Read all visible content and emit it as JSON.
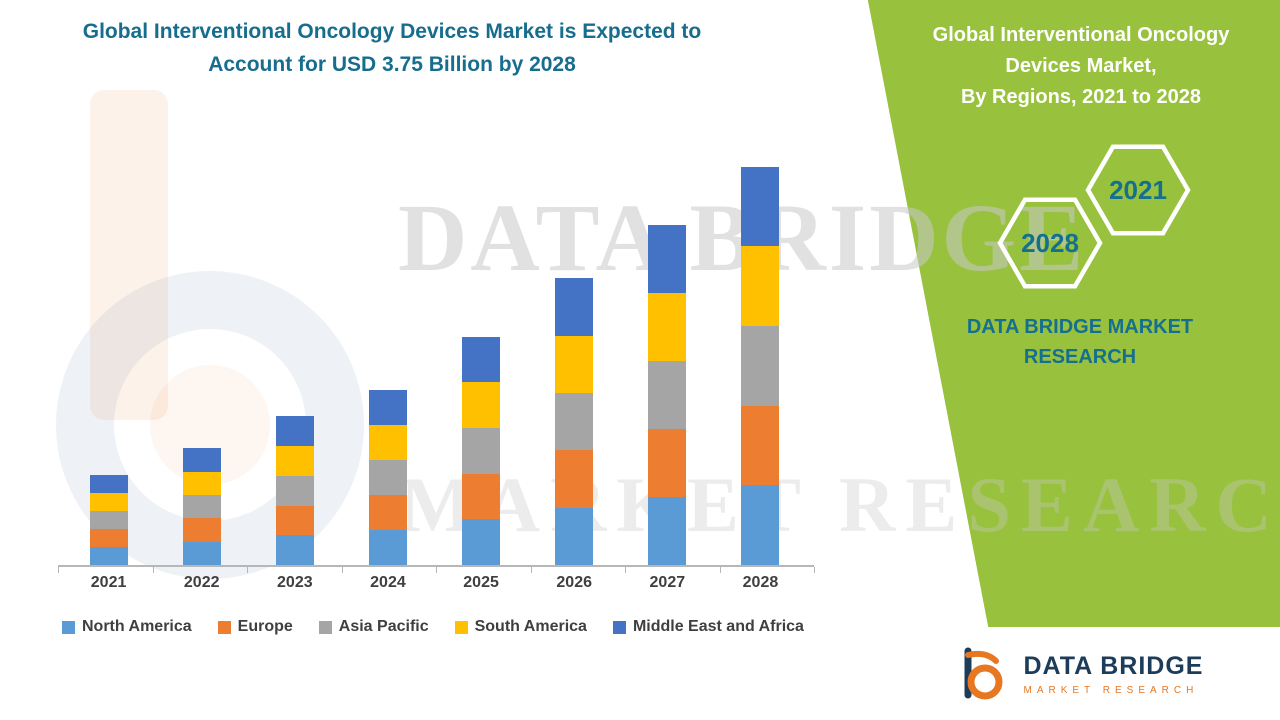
{
  "header": {
    "line1": "Global Interventional Oncology Devices Market is Expected to",
    "line2": "Account for USD 3.75 Billion by 2028",
    "color": "#176d8e"
  },
  "side_panel": {
    "bg_color": "#98c13d",
    "title_line1": "Global Interventional Oncology",
    "title_line2": "Devices Market,",
    "title_line3": "By Regions, 2021 to 2028",
    "hex_year_top": "2021",
    "hex_year_bottom": "2028",
    "brand_line1": "DATA BRIDGE MARKET",
    "brand_line2": "RESEARCH",
    "brand_color": "#15708f"
  },
  "watermark": {
    "line1": "DATA BRIDGE",
    "line2": "MARKET RESEARCH"
  },
  "footer_logo": {
    "title": "DATA BRIDGE",
    "subtitle": "MARKET RESEARCH"
  },
  "chart_data": {
    "type": "bar",
    "stacked": true,
    "title": "Global Interventional Oncology Devices Market, By Regions, 2021 to 2028",
    "unit": "USD Billion",
    "value_note": "USD 3.75 Billion by 2028",
    "categories": [
      "2021",
      "2022",
      "2023",
      "2024",
      "2025",
      "2026",
      "2027",
      "2028"
    ],
    "series": [
      {
        "name": "North America",
        "color": "#5B9BD5",
        "values": [
          0.17,
          0.22,
          0.28,
          0.33,
          0.43,
          0.54,
          0.64,
          0.75
        ]
      },
      {
        "name": "Europe",
        "color": "#ED7D31",
        "values": [
          0.17,
          0.22,
          0.28,
          0.33,
          0.43,
          0.54,
          0.64,
          0.75
        ]
      },
      {
        "name": "Asia Pacific",
        "color": "#A5A5A5",
        "values": [
          0.17,
          0.22,
          0.28,
          0.33,
          0.43,
          0.54,
          0.64,
          0.75
        ]
      },
      {
        "name": "South America",
        "color": "#FFC000",
        "values": [
          0.17,
          0.22,
          0.28,
          0.33,
          0.43,
          0.54,
          0.64,
          0.75
        ]
      },
      {
        "name": "Middle East and Africa",
        "color": "#4472C4",
        "values": [
          0.17,
          0.22,
          0.28,
          0.33,
          0.43,
          0.54,
          0.64,
          0.75
        ]
      }
    ],
    "totals": [
      0.85,
      1.1,
      1.4,
      1.65,
      2.15,
      2.7,
      3.2,
      3.75
    ],
    "ylim": [
      0,
      4.0
    ],
    "grid": false,
    "legend_position": "bottom"
  }
}
